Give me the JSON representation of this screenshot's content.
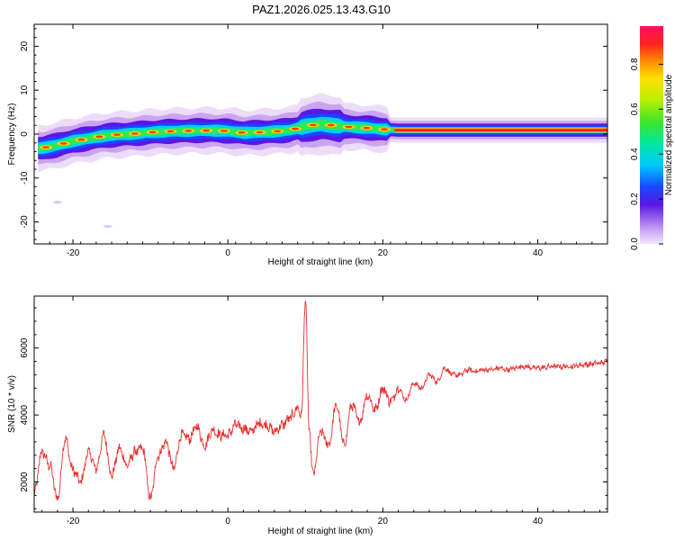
{
  "title": "PAZ1.2026.025.13.43.G10",
  "chart_data": [
    {
      "type": "heatmap",
      "title": "PAZ1.2026.025.13.43.G10",
      "xlabel": "Height of straight line (km)",
      "ylabel": "Frequency (Hz)",
      "xlim": [
        -25,
        49
      ],
      "ylim": [
        -25,
        25
      ],
      "xticks": [
        -20,
        0,
        20,
        40
      ],
      "yticks": [
        20,
        10,
        0,
        -10,
        -20
      ],
      "colorbar": {
        "label": "Normalized spectral amplitude",
        "range": [
          0,
          1
        ],
        "ticks": [
          "0.0",
          "0.2",
          "0.4",
          "0.6",
          "0.8"
        ]
      },
      "ridge": {
        "x": [
          -24,
          -22,
          -20,
          -18,
          -16,
          -14,
          -12,
          -10,
          -8,
          -6,
          -4,
          -2,
          0,
          2,
          4,
          6,
          8,
          10,
          12,
          14,
          16,
          18,
          20,
          22,
          30,
          40,
          49
        ],
        "freq_hz": [
          -3.2,
          -2.5,
          -1.6,
          -1.0,
          -0.4,
          -0.1,
          0.1,
          0.4,
          0.6,
          0.7,
          0.8,
          0.8,
          0.7,
          0.3,
          0.4,
          0.6,
          0.9,
          1.8,
          2.3,
          1.9,
          1.6,
          1.4,
          1.1,
          0.9,
          0.9,
          0.9,
          0.9
        ]
      },
      "outliers": [
        {
          "x": -22,
          "freq_hz": -15.5
        },
        {
          "x": -15.5,
          "freq_hz": -21
        }
      ]
    },
    {
      "type": "line",
      "xlabel": "Height of straight line (km)",
      "ylabel": "SNR (10 * v/v)",
      "xlim": [
        -25,
        49
      ],
      "ylim": [
        1100,
        7550
      ],
      "xticks": [
        -20,
        0,
        20,
        40
      ],
      "yticks": [
        2000,
        4000,
        6000
      ],
      "series": [
        {
          "color": "#e8312f",
          "x": [
            -25,
            -24,
            -23,
            -22,
            -21,
            -20,
            -19,
            -18,
            -17,
            -16,
            -15,
            -14,
            -13,
            -12,
            -11,
            -10,
            -9,
            -8,
            -7,
            -6,
            -5,
            -4,
            -3,
            -2,
            -1,
            0,
            1,
            2,
            3,
            4,
            5,
            6,
            7,
            8,
            9,
            9.5,
            10,
            10.5,
            11,
            12,
            13,
            14,
            15,
            16,
            17,
            18,
            19,
            20,
            21,
            22,
            23,
            24,
            25,
            26,
            27,
            28,
            29,
            30,
            31,
            32,
            33,
            34,
            35,
            36,
            38,
            40,
            42,
            44,
            46,
            48,
            49
          ],
          "y": [
            1650,
            2900,
            2500,
            1500,
            3300,
            2350,
            2000,
            2900,
            2400,
            3400,
            2200,
            3000,
            2500,
            2900,
            3000,
            1500,
            2800,
            3200,
            2400,
            3400,
            3300,
            3650,
            3100,
            3550,
            3400,
            3400,
            3700,
            3600,
            3500,
            3750,
            3700,
            3500,
            3700,
            3900,
            4200,
            4000,
            7500,
            3500,
            2200,
            3500,
            3100,
            4300,
            3100,
            4300,
            3800,
            4600,
            4150,
            4800,
            4400,
            4800,
            4450,
            4950,
            4800,
            5200,
            5000,
            5400,
            5200,
            5200,
            5350,
            5300,
            5350,
            5350,
            5400,
            5350,
            5450,
            5400,
            5450,
            5450,
            5500,
            5550,
            5600
          ]
        }
      ]
    }
  ]
}
